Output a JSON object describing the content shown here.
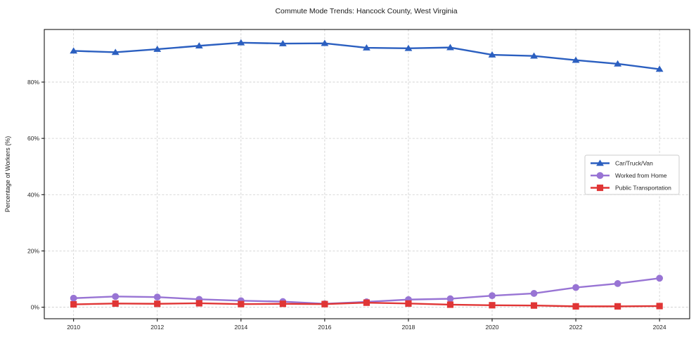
{
  "title": "Commute Mode Trends: Hancock County, West Virginia",
  "chart_data": {
    "type": "line",
    "title": "Commute Mode Trends: Hancock County, West Virginia",
    "xlabel": "",
    "ylabel": "Percentage of Workers (%)",
    "x": [
      2010,
      2011,
      2012,
      2013,
      2014,
      2015,
      2016,
      2017,
      2018,
      2019,
      2020,
      2021,
      2022,
      2023,
      2024
    ],
    "series": [
      {
        "name": "Car/Truck/Van",
        "marker": "triangle",
        "color": "#2b5fc0",
        "values": [
          91.1,
          90.6,
          91.7,
          92.9,
          94.0,
          93.7,
          93.8,
          92.2,
          92.0,
          92.3,
          89.7,
          89.3,
          87.8,
          86.5,
          84.6
        ]
      },
      {
        "name": "Worked from Home",
        "marker": "circle",
        "color": "#9874d4",
        "values": [
          3.2,
          3.8,
          3.6,
          2.8,
          2.3,
          2.0,
          1.2,
          1.9,
          2.7,
          3.0,
          4.1,
          4.9,
          7.0,
          8.4,
          10.3
        ]
      },
      {
        "name": "Public Transportation",
        "marker": "square",
        "color": "#e03535",
        "values": [
          1.0,
          1.3,
          1.2,
          1.4,
          1.1,
          1.2,
          1.1,
          1.6,
          1.3,
          0.9,
          0.7,
          0.6,
          0.3,
          0.3,
          0.4
        ]
      }
    ],
    "xticks": {
      "values": [
        2010,
        2012,
        2014,
        2016,
        2018,
        2020,
        2022,
        2024
      ],
      "labels": [
        "2010",
        "2012",
        "2014",
        "2016",
        "2018",
        "2020",
        "2022",
        "2024"
      ]
    },
    "yticks": {
      "values": [
        0,
        20,
        40,
        60,
        80
      ],
      "labels": [
        "0%",
        "20%",
        "40%",
        "60%",
        "80%"
      ]
    },
    "xlim": [
      2009.3,
      2024.72
    ],
    "ylim": [
      -4.1,
      98.7
    ],
    "grid": true,
    "grid_style": "dashed",
    "legend_position": "center-right"
  },
  "colors": {
    "background": "#ffffff",
    "grid": "#cccccc",
    "spine": "#000000",
    "text": "#1a1a1a",
    "series_blue": "#2b5fc0",
    "series_purple": "#9874d4",
    "series_red": "#e03535"
  }
}
